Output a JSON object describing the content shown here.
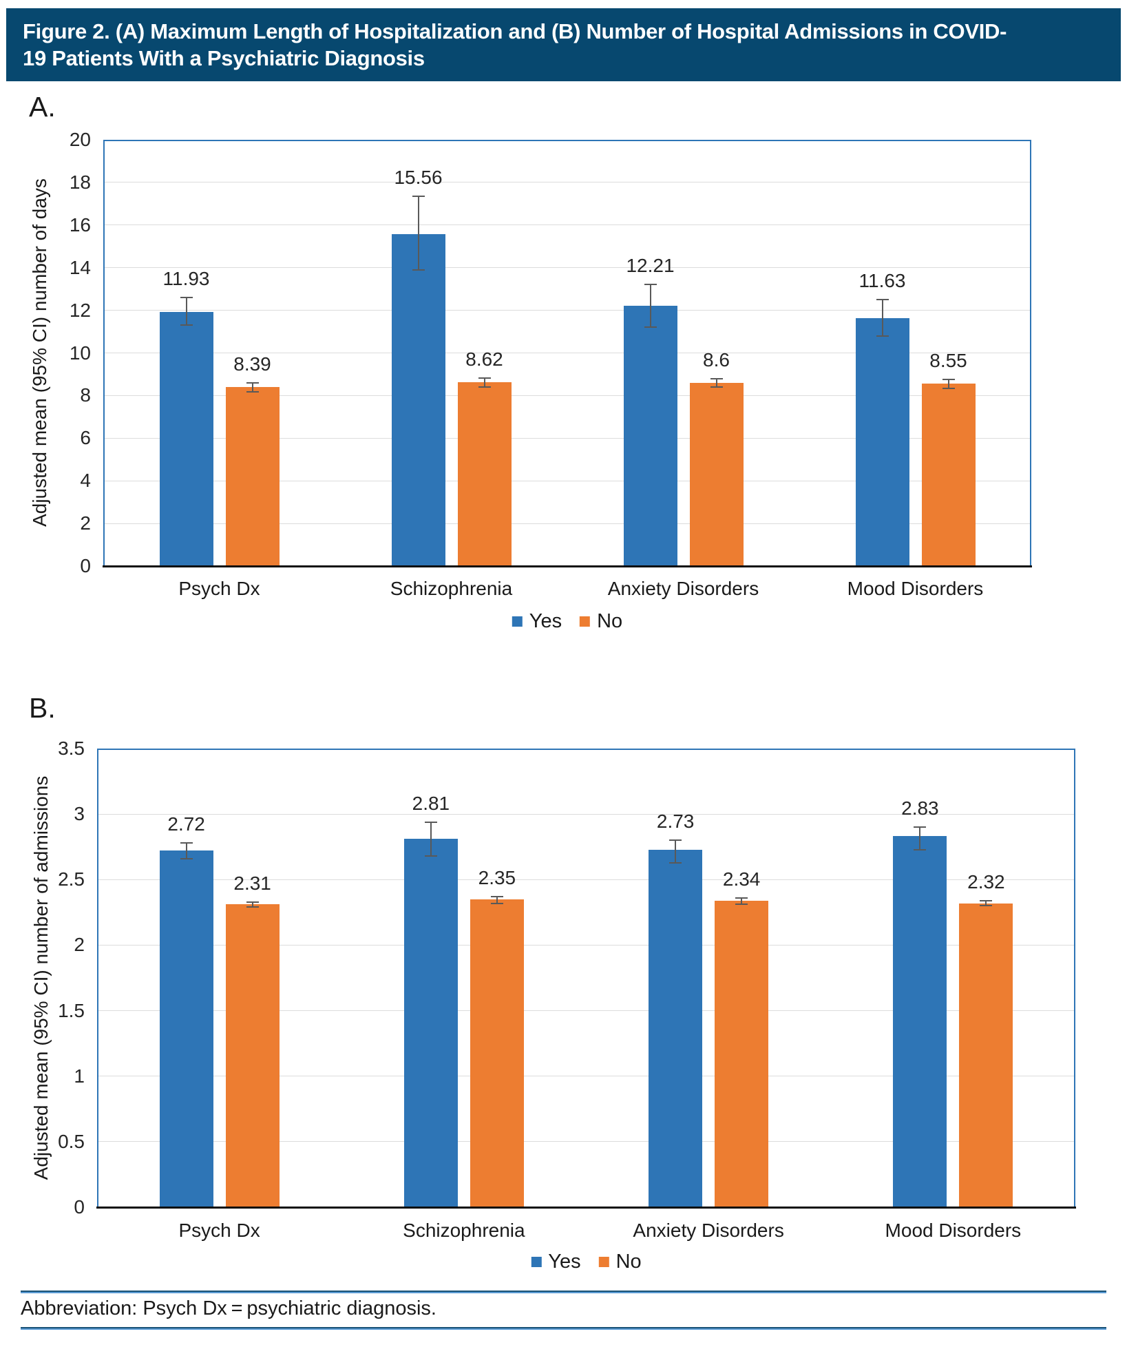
{
  "banner": {
    "title": "Figure 2. (A) Maximum Length of Hospitalization and (B) Number of Hospital Admissions in COVID-19 Patients With a Psychiatric Diagnosis",
    "bg_color": "#07486F"
  },
  "colors": {
    "yes": "#2E75B6",
    "no": "#ED7D31",
    "frame": "#2E75B6",
    "grid": "#DCDCDC",
    "error_bar": "#595959",
    "axis": "#0D0D0D",
    "rule": "#1A5276"
  },
  "legend": {
    "position": "bottom",
    "items": [
      {
        "label": "Yes",
        "color": "#2E75B6"
      },
      {
        "label": "No",
        "color": "#ED7D31"
      }
    ]
  },
  "footer": {
    "text": "Abbreviation: Psych Dx = psychiatric diagnosis."
  },
  "chart_data": [
    {
      "type": "bar",
      "panel_label": "A.",
      "ylabel": "Adjusted mean (95% CI) number of days",
      "ylim": [
        0,
        20
      ],
      "ytick_step": 2,
      "yticks": [
        0,
        2,
        4,
        6,
        8,
        10,
        12,
        14,
        16,
        18,
        20
      ],
      "ytick_labels": [
        "0",
        "2",
        "4",
        "6",
        "8",
        "10",
        "12",
        "14",
        "16",
        "18",
        "20"
      ],
      "grid": true,
      "categories": [
        "Psych Dx",
        "Schizophrenia",
        "Anxiety Disorders",
        "Mood Disorders"
      ],
      "series": [
        {
          "name": "Yes",
          "values": [
            11.93,
            15.56,
            12.21,
            11.63
          ],
          "labels": [
            "11.93",
            "15.56",
            "12.21",
            "11.63"
          ],
          "ci_low": [
            11.3,
            13.9,
            11.2,
            10.8
          ],
          "ci_high": [
            12.6,
            17.35,
            13.2,
            12.5
          ]
        },
        {
          "name": "No",
          "values": [
            8.39,
            8.62,
            8.6,
            8.55
          ],
          "labels": [
            "8.39",
            "8.62",
            "8.6",
            "8.55"
          ],
          "ci_low": [
            8.18,
            8.4,
            8.4,
            8.35
          ],
          "ci_high": [
            8.6,
            8.82,
            8.8,
            8.75
          ]
        }
      ]
    },
    {
      "type": "bar",
      "panel_label": "B.",
      "ylabel": "Adjusted mean (95% CI) number of admissions",
      "ylim": [
        0,
        3.5
      ],
      "ytick_step": 0.5,
      "yticks": [
        0,
        0.5,
        1,
        1.5,
        2,
        2.5,
        3,
        3.5
      ],
      "ytick_labels": [
        "0",
        "0.5",
        "1",
        "1.5",
        "2",
        "2.5",
        "3",
        "3.5"
      ],
      "grid": true,
      "categories": [
        "Psych Dx",
        "Schizophrenia",
        "Anxiety Disorders",
        "Mood Disorders"
      ],
      "series": [
        {
          "name": "Yes",
          "values": [
            2.72,
            2.81,
            2.73,
            2.83
          ],
          "labels": [
            "2.72",
            "2.81",
            "2.73",
            "2.83"
          ],
          "ci_low": [
            2.66,
            2.68,
            2.63,
            2.73
          ],
          "ci_high": [
            2.78,
            2.94,
            2.8,
            2.9
          ]
        },
        {
          "name": "No",
          "values": [
            2.31,
            2.35,
            2.34,
            2.32
          ],
          "labels": [
            "2.31",
            "2.35",
            "2.34",
            "2.32"
          ],
          "ci_low": [
            2.29,
            2.32,
            2.31,
            2.3
          ],
          "ci_high": [
            2.33,
            2.37,
            2.36,
            2.34
          ]
        }
      ]
    }
  ]
}
